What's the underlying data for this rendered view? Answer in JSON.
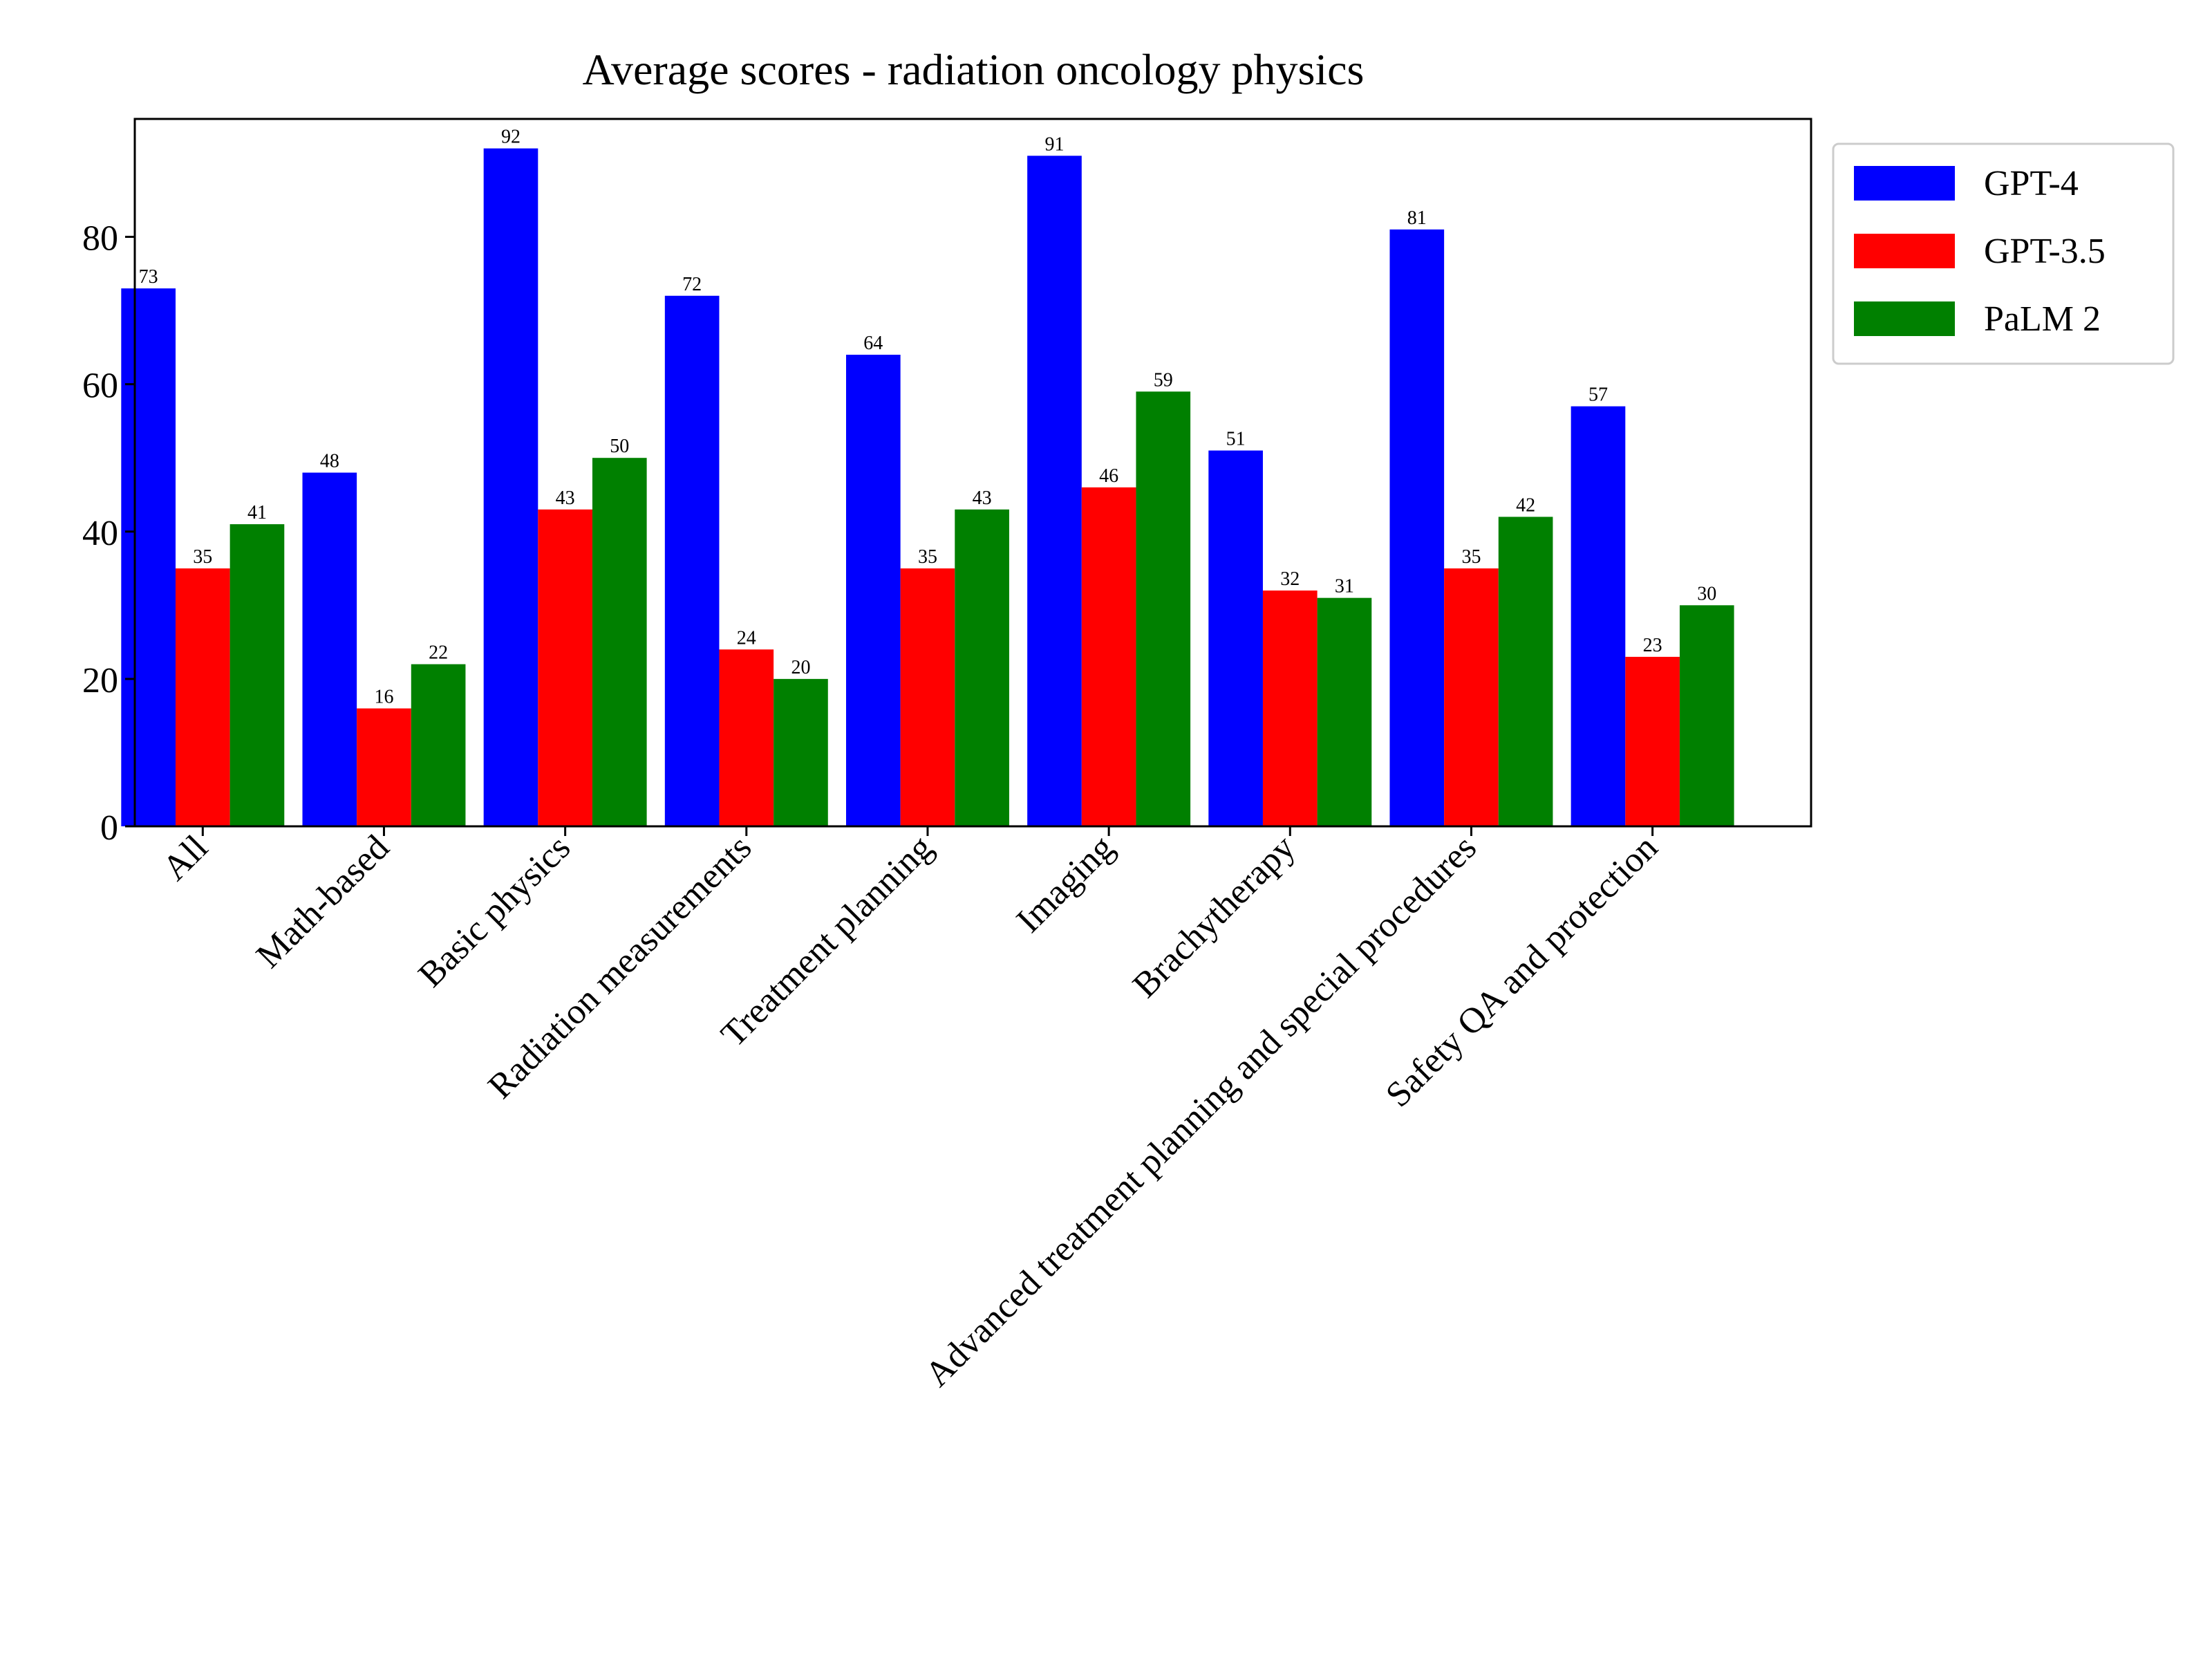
{
  "chart_data": {
    "type": "bar",
    "title": "Average scores - radiation oncology physics",
    "xlabel": "",
    "ylabel": "",
    "ylim": [
      0,
      96
    ],
    "yticks": [
      0,
      20,
      40,
      60,
      80
    ],
    "grid": false,
    "legend_position": "outside-top-right",
    "categories": [
      "All",
      "Math-based",
      "Basic physics",
      "Radiation measurements",
      "Treatment planning",
      "Imaging",
      "Brachytherapy",
      "Advanced treatment planning and special procedures",
      "Safety QA and protection"
    ],
    "series": [
      {
        "name": "GPT-4",
        "color": "#0000ff",
        "values": [
          73,
          48,
          92,
          72,
          64,
          91,
          51,
          81,
          57
        ]
      },
      {
        "name": "GPT-3.5",
        "color": "#ff0000",
        "values": [
          35,
          16,
          43,
          24,
          35,
          46,
          32,
          35,
          23
        ]
      },
      {
        "name": "PaLM 2",
        "color": "#008000",
        "values": [
          41,
          22,
          50,
          20,
          43,
          59,
          31,
          42,
          30
        ]
      }
    ]
  }
}
